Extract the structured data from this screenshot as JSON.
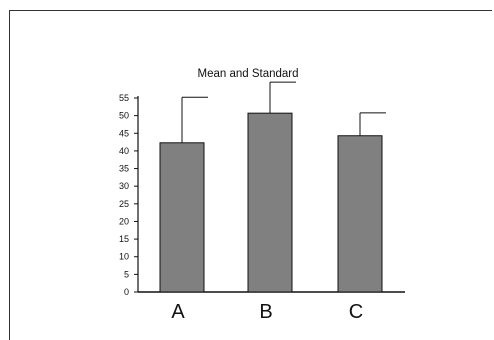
{
  "chart_data": {
    "type": "bar",
    "title": "Mean and Standard",
    "xlabel": "",
    "ylabel": "",
    "categories": [
      "A",
      "B",
      "C"
    ],
    "values": [
      42.3,
      50.7,
      44.3
    ],
    "error_upper": [
      55.2,
      59.5,
      50.8
    ],
    "ylim": [
      0,
      55
    ],
    "yticks": [
      0,
      5,
      10,
      15,
      20,
      25,
      30,
      35,
      40,
      45,
      50,
      55
    ],
    "grid": false,
    "legend": "none",
    "bar_color": "#808080",
    "bar_edge_color": "#111111"
  }
}
